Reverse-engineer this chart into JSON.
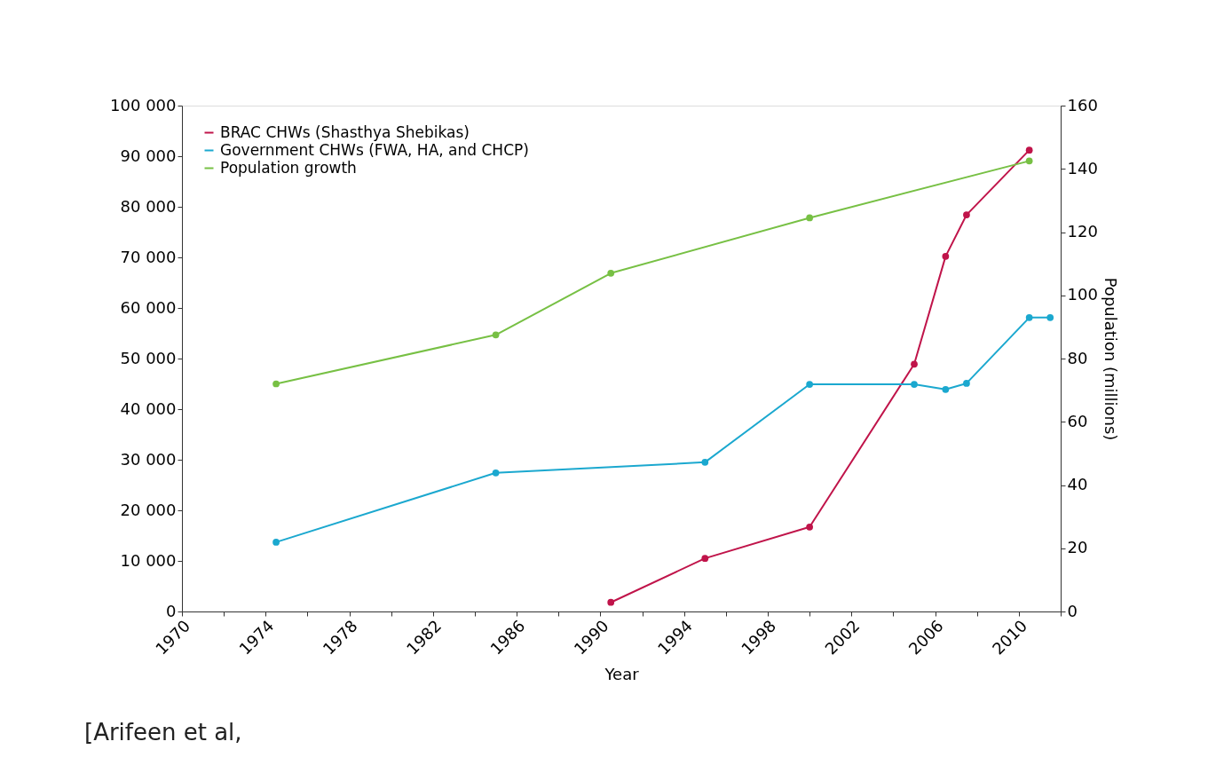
{
  "chart_data": {
    "type": "line",
    "xlabel": "Year",
    "y2label": "Population (millions)",
    "xlim": [
      1970,
      2012
    ],
    "xticks": [
      1970,
      {
        "value": 1972,
        "label": null
      },
      1974,
      {
        "value": 1976,
        "label": null
      },
      1978,
      {
        "value": 1980,
        "label": null
      },
      1982,
      {
        "value": 1984,
        "label": null
      },
      1986,
      {
        "value": 1988,
        "label": null
      },
      1990,
      {
        "value": 1992,
        "label": null
      },
      1994,
      {
        "value": 1996,
        "label": null
      },
      1998,
      {
        "value": 2000,
        "label": null
      },
      2002,
      {
        "value": 2004,
        "label": null
      },
      2006,
      {
        "value": 2008,
        "label": null
      },
      2010,
      {
        "value": 2012,
        "label": null
      }
    ],
    "ylim": [
      0,
      100000
    ],
    "yticks": [
      0,
      {
        "value": 10000,
        "label": "10 000"
      },
      {
        "value": 20000,
        "label": "20 000"
      },
      {
        "value": 30000,
        "label": "30 000"
      },
      {
        "value": 40000,
        "label": "40 000"
      },
      {
        "value": 50000,
        "label": "50 000"
      },
      {
        "value": 60000,
        "label": "60 000"
      },
      {
        "value": 70000,
        "label": "70 000"
      },
      {
        "value": 80000,
        "label": "80 000"
      },
      {
        "value": 90000,
        "label": "90 000"
      },
      {
        "value": 100000,
        "label": "100 000"
      }
    ],
    "y2lim": [
      0,
      160
    ],
    "y2ticks": [
      0,
      20,
      40,
      60,
      80,
      100,
      120,
      140,
      160
    ],
    "grid": false,
    "legend": "top left",
    "marker": "circle",
    "line_style": "solid",
    "series": [
      {
        "name": "BRAC CHWs (Shasthya Shebikas)",
        "color": "#c0144a",
        "x": [
          1990.5,
          1995,
          2000,
          2005,
          2006.5,
          2007.5,
          2010.5
        ],
        "values": [
          1800,
          10500,
          16700,
          48900,
          70200,
          78400,
          91200
        ]
      },
      {
        "name": "Government CHWs (FWA, HA, and CHCP)",
        "color": "#1ba8cf",
        "x": [
          1974.5,
          1985,
          1995,
          2000,
          2005,
          2006.5,
          2007.5,
          2010.5,
          2011.5
        ],
        "values": [
          13700,
          27400,
          29500,
          44900,
          44900,
          43900,
          45100,
          58100,
          58100
        ]
      },
      {
        "name": "Population growth",
        "color": "#77c044",
        "axis": "y2",
        "x": [
          1974.5,
          1985,
          1990.5,
          2000,
          2010.5
        ],
        "values": [
          72,
          87.5,
          107,
          124.5,
          142.5
        ]
      }
    ],
    "annotations": [
      "[Arifeen et al,"
    ]
  }
}
